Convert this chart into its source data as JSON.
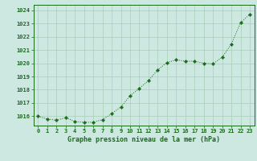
{
  "x": [
    0,
    1,
    2,
    3,
    4,
    5,
    6,
    7,
    8,
    9,
    10,
    11,
    12,
    13,
    14,
    15,
    16,
    17,
    18,
    19,
    20,
    21,
    22,
    23
  ],
  "y": [
    1016.0,
    1015.8,
    1015.7,
    1015.9,
    1015.6,
    1015.55,
    1015.55,
    1015.75,
    1016.2,
    1016.7,
    1017.55,
    1018.1,
    1018.7,
    1019.5,
    1020.05,
    1020.25,
    1020.15,
    1020.15,
    1020.0,
    1019.95,
    1020.45,
    1021.45,
    1023.05,
    1023.7
  ],
  "line_color": "#1a6b1a",
  "marker": "D",
  "marker_size": 2.2,
  "bg_color": "#cce8e0",
  "grid_color": "#aaccbb",
  "axis_label_color": "#1a6b1a",
  "tick_color": "#1a6b1a",
  "xlabel": "Graphe pression niveau de la mer (hPa)",
  "ylim": [
    1015.3,
    1024.4
  ],
  "yticks": [
    1016,
    1017,
    1018,
    1019,
    1020,
    1021,
    1022,
    1023,
    1024
  ],
  "xticks": [
    0,
    1,
    2,
    3,
    4,
    5,
    6,
    7,
    8,
    9,
    10,
    11,
    12,
    13,
    14,
    15,
    16,
    17,
    18,
    19,
    20,
    21,
    22,
    23
  ]
}
